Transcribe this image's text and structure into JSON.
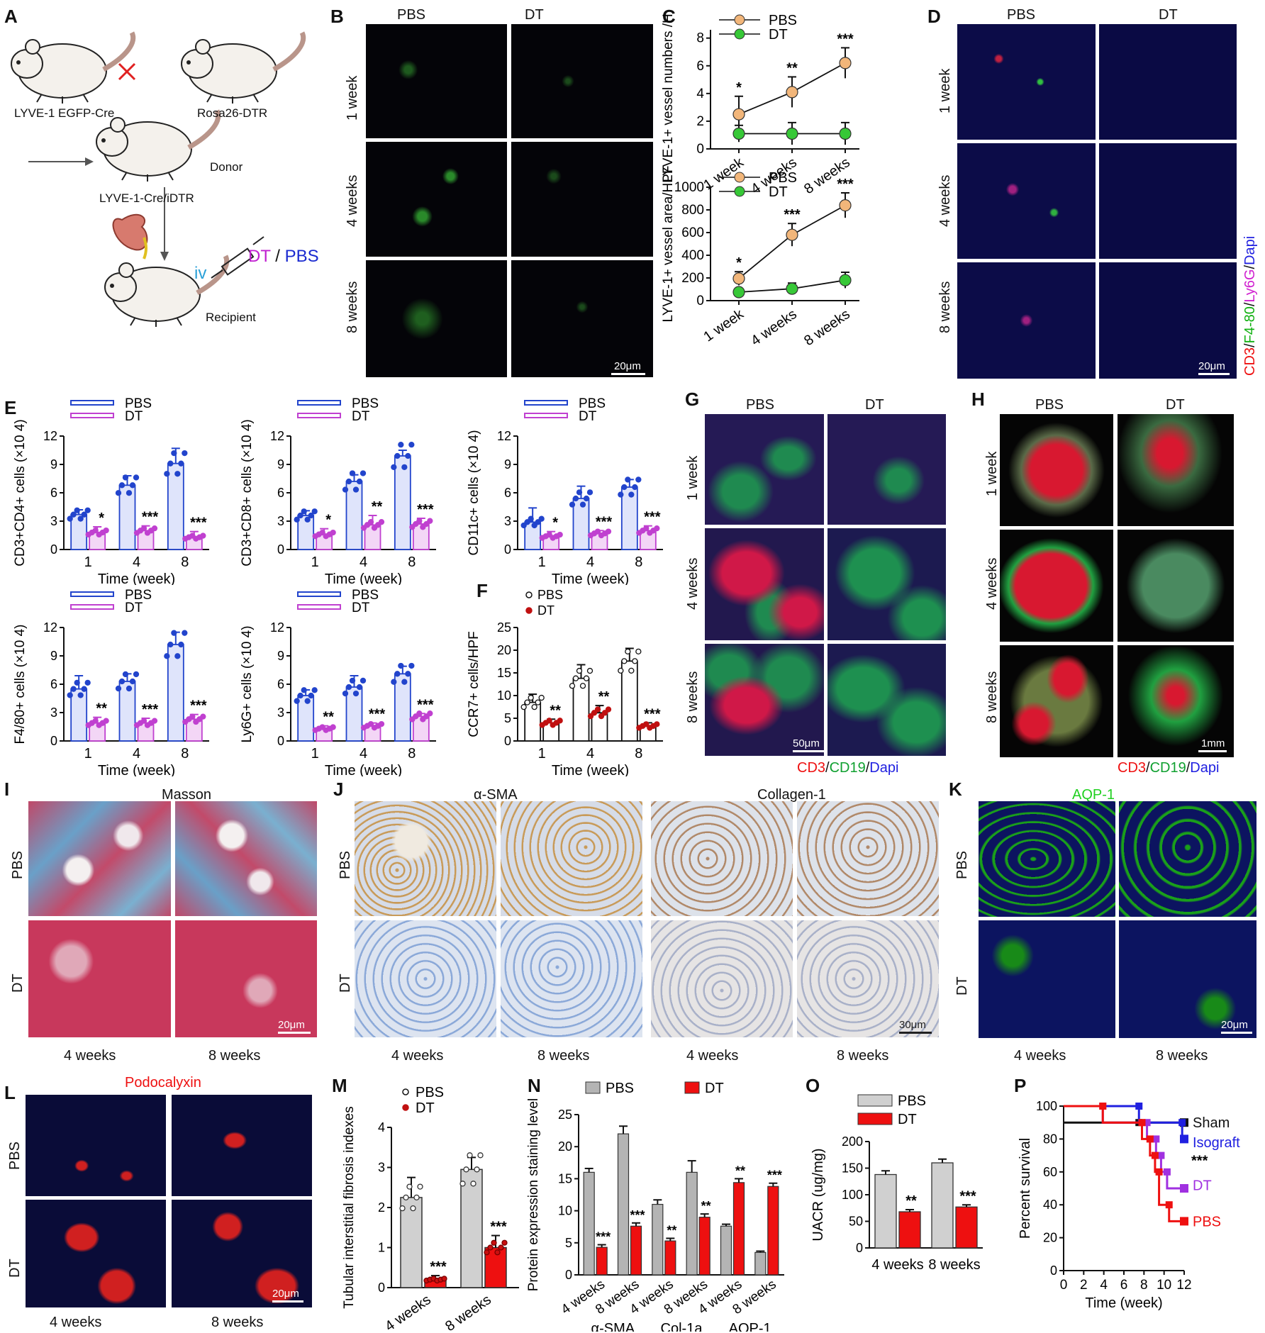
{
  "A": {
    "letter": "A",
    "labels": {
      "mouse1": "LYVE-1 EGFP-Cre",
      "mouse2": "Rosa26-DTR",
      "donor": "Donor",
      "offspring": "LYVE-1-Cre/iDTR",
      "iv": "iv",
      "dt": "DT",
      "slash": " / ",
      "pbs": "PBS",
      "recipient": "Recipient"
    }
  },
  "B": {
    "letter": "B",
    "cols": [
      "PBS",
      "DT"
    ],
    "rows": [
      "1 week",
      "4 weeks",
      "8 weeks"
    ],
    "scale": "20μm"
  },
  "C": {
    "letter": "C"
  },
  "D": {
    "letter": "D",
    "cols": [
      "PBS",
      "DT"
    ],
    "rows": [
      "1 week",
      "4 weeks",
      "8 weeks"
    ],
    "scale": "20μm",
    "side_label": {
      "cd3": "CD3",
      "s1": "/",
      "f480": "F4-80",
      "s2": "/",
      "ly6g": "Ly6G",
      "s3": "/",
      "dapi": "Dapi"
    }
  },
  "E": {
    "letter": "E"
  },
  "F": {
    "letter": "F"
  },
  "G": {
    "letter": "G",
    "cols": [
      "PBS",
      "DT"
    ],
    "rows": [
      "1 week",
      "4 weeks",
      "8 weeks"
    ],
    "scale": "50μm",
    "stain": {
      "cd3": "CD3",
      "s1": "/",
      "cd19": "CD19",
      "s2": "/",
      "dapi": "Dapi"
    }
  },
  "H": {
    "letter": "H",
    "cols": [
      "PBS",
      "DT"
    ],
    "rows": [
      "1 week",
      "4 weeks",
      "8 weeks"
    ],
    "scale": "1mm",
    "stain": {
      "cd3": "CD3",
      "s1": "/",
      "cd19": "CD19",
      "s2": "/",
      "dapi": "Dapi"
    }
  },
  "I": {
    "letter": "I",
    "title": "Masson",
    "rows": [
      "PBS",
      "DT"
    ],
    "cols": [
      "4 weeks",
      "8 weeks"
    ],
    "scale": "20μm"
  },
  "J": {
    "letter": "J",
    "title1": "α-SMA",
    "title2": "Collagen-1",
    "rows": [
      "PBS",
      "DT"
    ],
    "cols": [
      "4 weeks",
      "8 weeks",
      "4 weeks",
      "8 weeks"
    ],
    "scale": "30μm"
  },
  "K": {
    "letter": "K",
    "title": "AQP-1",
    "rows": [
      "PBS",
      "DT"
    ],
    "cols": [
      "4 weeks",
      "8 weeks"
    ],
    "scale": "20μm"
  },
  "L": {
    "letter": "L",
    "title": "Podocalyxin",
    "rows": [
      "PBS",
      "DT"
    ],
    "cols": [
      "4 weeks",
      "8 weeks"
    ],
    "scale": "20μm"
  },
  "M": {
    "letter": "M"
  },
  "N": {
    "letter": "N"
  },
  "O": {
    "letter": "O"
  },
  "P": {
    "letter": "P"
  },
  "chart_data": [
    {
      "id": "C1",
      "type": "line",
      "ylabel": "LYVE-1+ vessel numbers /HPF",
      "categories": [
        "1 week",
        "4 weeks",
        "8 weeks"
      ],
      "yticks": [
        "0",
        "2",
        "4",
        "6",
        "8"
      ],
      "ylim": [
        0,
        8.6
      ],
      "series": [
        {
          "name": "PBS",
          "color": "#f2b67a",
          "values": [
            2.5,
            4.1,
            6.2
          ],
          "err": [
            1.3,
            1.1,
            1.1
          ],
          "sig": [
            "*",
            "**",
            "***"
          ]
        },
        {
          "name": "DT",
          "color": "#37c837",
          "values": [
            1.1,
            1.1,
            1.1
          ],
          "err": [
            0.6,
            0.8,
            0.8
          ]
        }
      ]
    },
    {
      "id": "C2",
      "type": "line",
      "ylabel": "LYVE-1+ vessel area/HPF",
      "categories": [
        "1 week",
        "4 weeks",
        "8 weeks"
      ],
      "yticks": [
        "0",
        "200",
        "400",
        "600",
        "800",
        "1000"
      ],
      "ylim": [
        0,
        1000
      ],
      "series": [
        {
          "name": "PBS",
          "color": "#f2b67a",
          "values": [
            195,
            580,
            840
          ],
          "err": [
            60,
            100,
            110
          ],
          "sig": [
            "*",
            "***",
            "***"
          ]
        },
        {
          "name": "DT",
          "color": "#37c837",
          "values": [
            75,
            105,
            180
          ],
          "err": [
            25,
            50,
            70
          ]
        }
      ]
    },
    {
      "id": "E1",
      "type": "bar",
      "ylabel": "CD3+CD4+ cells (×10 4)",
      "xlabel": "Time (week)",
      "categories": [
        "1",
        "4",
        "8"
      ],
      "yticks": [
        "0",
        "3",
        "6",
        "9",
        "12"
      ],
      "ylim": [
        0,
        12
      ],
      "legend": [
        "PBS",
        "DT"
      ],
      "series": [
        {
          "name": "PBS",
          "values": [
            3.7,
            6.8,
            9.1
          ],
          "err": [
            0.5,
            1.0,
            1.6
          ]
        },
        {
          "name": "DT",
          "values": [
            1.8,
            2.0,
            1.3
          ],
          "err": [
            0.6,
            0.5,
            0.6
          ],
          "sig": [
            "*",
            "***",
            "***"
          ]
        }
      ]
    },
    {
      "id": "E2",
      "type": "bar",
      "ylabel": "CD3+CD8+ cells (×10 4)",
      "xlabel": "Time (week)",
      "categories": [
        "1",
        "4",
        "8"
      ],
      "yticks": [
        "0",
        "3",
        "6",
        "9",
        "12"
      ],
      "ylim": [
        0,
        12
      ],
      "legend": [
        "PBS",
        "DT"
      ],
      "series": [
        {
          "name": "PBS",
          "values": [
            3.6,
            7.2,
            9.9
          ],
          "err": [
            0.5,
            0.7,
            0.6
          ]
        },
        {
          "name": "DT",
          "values": [
            1.6,
            2.6,
            2.7
          ],
          "err": [
            0.6,
            1.0,
            0.6
          ],
          "sig": [
            "*",
            "**",
            "***"
          ]
        }
      ]
    },
    {
      "id": "E3",
      "type": "bar",
      "ylabel": "CD11c+ cells (×10 4)",
      "xlabel": "Time (week)",
      "categories": [
        "1",
        "4",
        "8"
      ],
      "yticks": [
        "0",
        "3",
        "6",
        "9",
        "12"
      ],
      "ylim": [
        0,
        12
      ],
      "legend": [
        "PBS",
        "DT"
      ],
      "series": [
        {
          "name": "PBS",
          "values": [
            2.9,
            5.4,
            6.6
          ],
          "err": [
            1.5,
            1.3,
            0.8
          ]
        },
        {
          "name": "DT",
          "values": [
            1.4,
            1.7,
            2.0
          ],
          "err": [
            0.5,
            0.3,
            0.5
          ],
          "sig": [
            "*",
            "***",
            "***"
          ]
        }
      ]
    },
    {
      "id": "E4",
      "type": "bar",
      "ylabel": "F4/80+ cells (×10 4)",
      "xlabel": "Time (week)",
      "categories": [
        "1",
        "4",
        "8"
      ],
      "yticks": [
        "0",
        "3",
        "6",
        "9",
        "12"
      ],
      "ylim": [
        0,
        12
      ],
      "legend": [
        "PBS",
        "DT"
      ],
      "series": [
        {
          "name": "PBS",
          "values": [
            5.5,
            6.3,
            10.2
          ],
          "err": [
            1.4,
            0.8,
            1.3
          ]
        },
        {
          "name": "DT",
          "values": [
            1.9,
            1.9,
            2.3
          ],
          "err": [
            0.6,
            0.5,
            0.5
          ],
          "sig": [
            "**",
            "***",
            "***"
          ]
        }
      ]
    },
    {
      "id": "E5",
      "type": "bar",
      "ylabel": "Ly6G+ cells (×10 4)",
      "xlabel": "Time (week)",
      "categories": [
        "1",
        "4",
        "8"
      ],
      "yticks": [
        "0",
        "3",
        "6",
        "9",
        "12"
      ],
      "ylim": [
        0,
        12
      ],
      "legend": [
        "PBS",
        "DT"
      ],
      "series": [
        {
          "name": "PBS",
          "values": [
            4.8,
            5.7,
            7.1
          ],
          "err": [
            0.6,
            1.2,
            0.8
          ]
        },
        {
          "name": "DT",
          "values": [
            1.3,
            1.6,
            2.6
          ],
          "err": [
            0.3,
            0.3,
            0.3
          ],
          "sig": [
            "**",
            "***",
            "***"
          ]
        }
      ]
    },
    {
      "id": "F",
      "type": "bar",
      "ylabel": "CCR7+ cells/HPF",
      "xlabel": "Time (week)",
      "categories": [
        "1",
        "4",
        "8"
      ],
      "yticks": [
        "0",
        "5",
        "10",
        "15",
        "20",
        "25"
      ],
      "ylim": [
        0,
        25
      ],
      "legend": [
        "PBS",
        "DT"
      ],
      "series": [
        {
          "name": "PBS",
          "values": [
            8.5,
            13.8,
            17.6
          ],
          "err": [
            1.8,
            3.0,
            2.8
          ]
        },
        {
          "name": "DT",
          "values": [
            4.0,
            6.2,
            3.3
          ],
          "err": [
            0.8,
            1.6,
            0.7
          ],
          "sig": [
            "**",
            "**",
            "***"
          ]
        }
      ]
    },
    {
      "id": "M",
      "type": "bar",
      "ylabel": "Tubular interstitial fibrosis indexes",
      "categories": [
        "4 weeks",
        "8 weeks"
      ],
      "yticks": [
        "0",
        "1",
        "2",
        "3",
        "4"
      ],
      "ylim": [
        0,
        4
      ],
      "legend": [
        "PBS",
        "DT"
      ],
      "series": [
        {
          "name": "PBS",
          "values": [
            2.25,
            2.95
          ],
          "err": [
            0.5,
            0.3
          ]
        },
        {
          "name": "DT",
          "values": [
            0.2,
            1.0
          ],
          "err": [
            0.1,
            0.3
          ],
          "sig": [
            "***",
            "***"
          ]
        }
      ]
    },
    {
      "id": "N",
      "type": "bar",
      "ylabel": "Protein expression staining level",
      "categories": [
        "4 weeks",
        "8 weeks",
        "4 weeks",
        "8 weeks",
        "4 weeks",
        "8 weeks"
      ],
      "groups": [
        "α-SMA",
        "Col-1a",
        "AQP-1"
      ],
      "yticks": [
        "0",
        "5",
        "10",
        "15",
        "20",
        "25"
      ],
      "ylim": [
        0,
        25
      ],
      "legend": [
        "PBS",
        "DT"
      ],
      "series": [
        {
          "name": "PBS",
          "values": [
            16,
            22,
            11,
            16,
            7.6,
            3.5
          ],
          "err": [
            0.6,
            1.2,
            0.7,
            1.8,
            0.3,
            0.2
          ]
        },
        {
          "name": "DT",
          "values": [
            4.3,
            7.6,
            5.3,
            9.0,
            14.4,
            13.8
          ],
          "err": [
            0.4,
            0.5,
            0.4,
            0.5,
            0.6,
            0.5
          ],
          "sig": [
            "***",
            "***",
            "**",
            "**",
            "**",
            "***"
          ]
        }
      ]
    },
    {
      "id": "O",
      "type": "bar",
      "ylabel": "UACR (ug/mg)",
      "categories": [
        "4 weeks",
        "8 weeks"
      ],
      "yticks": [
        "0",
        "50",
        "100",
        "150",
        "200"
      ],
      "ylim": [
        0,
        200
      ],
      "legend": [
        "PBS",
        "DT"
      ],
      "series": [
        {
          "name": "PBS",
          "values": [
            138,
            160
          ],
          "err": [
            7,
            7
          ]
        },
        {
          "name": "DT",
          "values": [
            68,
            77
          ],
          "err": [
            4,
            4
          ],
          "sig": [
            "**",
            "***"
          ]
        }
      ]
    },
    {
      "id": "P",
      "type": "line",
      "ylabel": "Percent survival",
      "xlabel": "Time (week)",
      "xticks": [
        "0",
        "2",
        "4",
        "6",
        "8",
        "10",
        "12"
      ],
      "yticks": [
        "0",
        "20",
        "40",
        "60",
        "80",
        "100"
      ],
      "sig": "***",
      "series": [
        {
          "name": "Sham",
          "color": "#111111",
          "points": [
            [
              0,
              90
            ],
            [
              7.5,
              90
            ],
            [
              12,
              90
            ]
          ]
        },
        {
          "name": "Isograft",
          "color": "#2020e0",
          "points": [
            [
              0,
              100
            ],
            [
              7.5,
              100
            ],
            [
              7.5,
              90
            ],
            [
              11.8,
              90
            ],
            [
              11.8,
              80
            ],
            [
              12,
              80
            ]
          ]
        },
        {
          "name": "DT",
          "color": "#a030e0",
          "points": [
            [
              0,
              100
            ],
            [
              3.9,
              100
            ],
            [
              3.9,
              90
            ],
            [
              8.3,
              90
            ],
            [
              8.3,
              80
            ],
            [
              9.2,
              80
            ],
            [
              9.2,
              70
            ],
            [
              9.7,
              70
            ],
            [
              9.7,
              60
            ],
            [
              10.3,
              60
            ],
            [
              10.3,
              50
            ],
            [
              12,
              50
            ]
          ]
        },
        {
          "name": "PBS",
          "color": "#ee1010",
          "points": [
            [
              0,
              100
            ],
            [
              3.9,
              100
            ],
            [
              3.9,
              90
            ],
            [
              7.8,
              90
            ],
            [
              7.8,
              80
            ],
            [
              8.6,
              80
            ],
            [
              8.6,
              70
            ],
            [
              9.1,
              70
            ],
            [
              9.1,
              60
            ],
            [
              9.5,
              60
            ],
            [
              9.5,
              40
            ],
            [
              10.5,
              40
            ],
            [
              10.5,
              30
            ],
            [
              12,
              30
            ]
          ]
        }
      ]
    }
  ]
}
